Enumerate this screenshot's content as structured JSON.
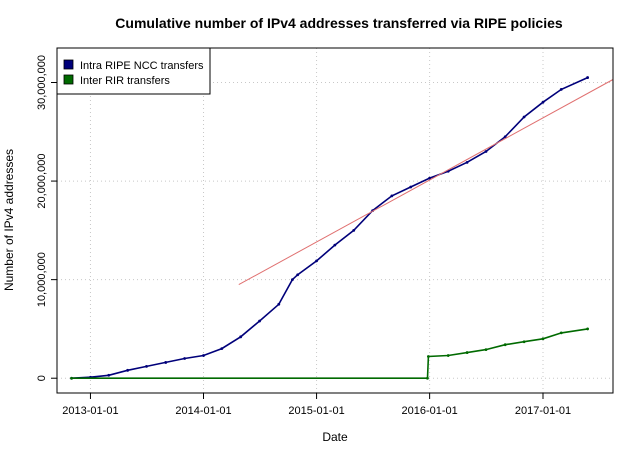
{
  "chart_data": {
    "type": "line",
    "title": "Cumulative number of IPv4 addresses transferred via RIPE policies",
    "xlabel": "Date",
    "ylabel": "Number of IPv4 addresses",
    "xlim": [
      "2012-09-15",
      "2017-08-15"
    ],
    "ylim": [
      -1500000,
      33500000
    ],
    "grid": true,
    "legend_position": "top-left",
    "x_ticks": [
      "2013-01-01",
      "2014-01-01",
      "2015-01-01",
      "2016-01-01",
      "2017-01-01"
    ],
    "y_ticks": [
      {
        "value": 0,
        "label": "0"
      },
      {
        "value": 10000000,
        "label": "10,000,000"
      },
      {
        "value": 20000000,
        "label": "20,000,000"
      },
      {
        "value": 30000000,
        "label": "30,000,000"
      }
    ],
    "series": [
      {
        "name": "Intra RIPE NCC transfers",
        "color": "#00007a",
        "style": "line-with-points",
        "x": [
          "2012-11-01",
          "2013-01-01",
          "2013-03-01",
          "2013-05-01",
          "2013-07-01",
          "2013-09-01",
          "2013-11-01",
          "2014-01-01",
          "2014-03-01",
          "2014-05-01",
          "2014-07-01",
          "2014-09-01",
          "2014-10-15",
          "2014-11-01",
          "2015-01-01",
          "2015-03-01",
          "2015-05-01",
          "2015-07-01",
          "2015-09-01",
          "2015-11-01",
          "2016-01-01",
          "2016-03-01",
          "2016-05-01",
          "2016-07-01",
          "2016-09-01",
          "2016-11-01",
          "2017-01-01",
          "2017-03-01",
          "2017-05-25"
        ],
        "values": [
          0,
          100000,
          300000,
          800000,
          1200000,
          1600000,
          2000000,
          2300000,
          3000000,
          4200000,
          5800000,
          7500000,
          10000000,
          10500000,
          11900000,
          13500000,
          15000000,
          17000000,
          18500000,
          19400000,
          20300000,
          21000000,
          21900000,
          23000000,
          24500000,
          26500000,
          28000000,
          29300000,
          30500000
        ]
      },
      {
        "name": "Inter RIR transfers",
        "color": "#006a00",
        "style": "line-with-points",
        "x": [
          "2012-11-01",
          "2015-12-25",
          "2015-12-28",
          "2016-03-01",
          "2016-05-01",
          "2016-07-01",
          "2016-09-01",
          "2016-11-01",
          "2017-01-01",
          "2017-03-01",
          "2017-05-25"
        ],
        "values": [
          0,
          0,
          2200000,
          2300000,
          2600000,
          2900000,
          3400000,
          3700000,
          4000000,
          4600000,
          5000000
        ]
      },
      {
        "color": "#e07070",
        "style": "line",
        "x": [
          "2014-04-25",
          "2017-08-15"
        ],
        "values": [
          9500000,
          30300000
        ]
      }
    ]
  }
}
